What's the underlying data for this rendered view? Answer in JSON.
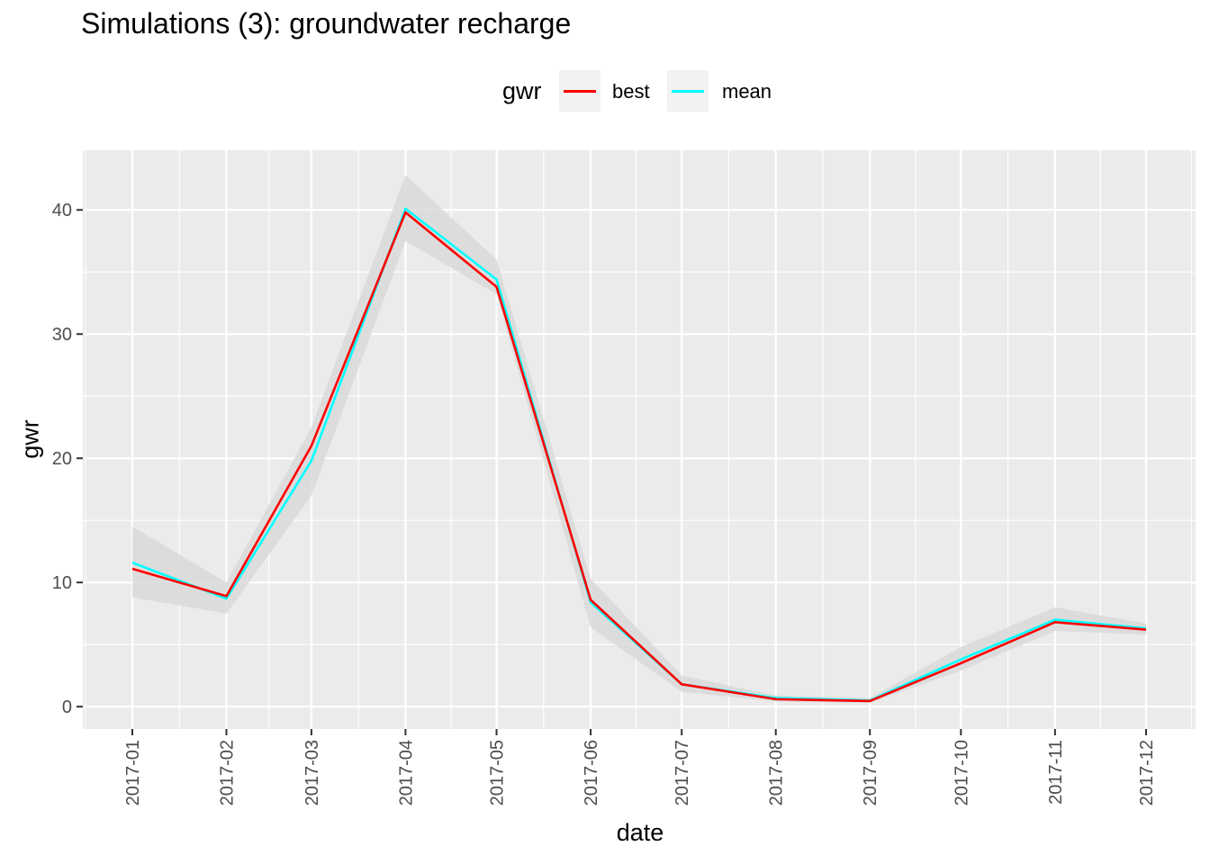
{
  "chart_data": {
    "type": "line",
    "title": "Simulations (3): groundwater recharge",
    "xlabel": "date",
    "ylabel": "gwr",
    "x": [
      "2017-01",
      "2017-02",
      "2017-03",
      "2017-04",
      "2017-05",
      "2017-06",
      "2017-07",
      "2017-08",
      "2017-09",
      "2017-10",
      "2017-11",
      "2017-12"
    ],
    "y_ticks": [
      0,
      10,
      20,
      30,
      40
    ],
    "ylim": [
      -1.8,
      44.8
    ],
    "grid": true,
    "legend": {
      "title": "gwr",
      "placement": "top",
      "entries": [
        {
          "label": "best",
          "color": "#ff0000"
        },
        {
          "label": "mean",
          "color": "#00ffff"
        }
      ]
    },
    "series": [
      {
        "name": "best",
        "color": "#ff0000",
        "values": [
          11.1,
          8.9,
          21.0,
          39.8,
          33.8,
          8.6,
          1.8,
          0.6,
          0.45,
          3.5,
          6.8,
          6.2
        ]
      },
      {
        "name": "mean",
        "color": "#00ffff",
        "values": [
          11.6,
          8.7,
          19.8,
          40.1,
          34.4,
          8.4,
          1.8,
          0.7,
          0.5,
          3.8,
          7.0,
          6.3
        ]
      }
    ],
    "band": {
      "fill": "#d9d9d9",
      "lower": [
        8.8,
        7.5,
        17.0,
        37.5,
        33.2,
        6.4,
        1.2,
        0.4,
        0.3,
        2.9,
        6.1,
        5.8
      ],
      "upper": [
        14.5,
        10.0,
        22.5,
        42.8,
        36.0,
        10.3,
        2.5,
        0.9,
        0.7,
        4.8,
        8.0,
        6.7
      ]
    }
  }
}
